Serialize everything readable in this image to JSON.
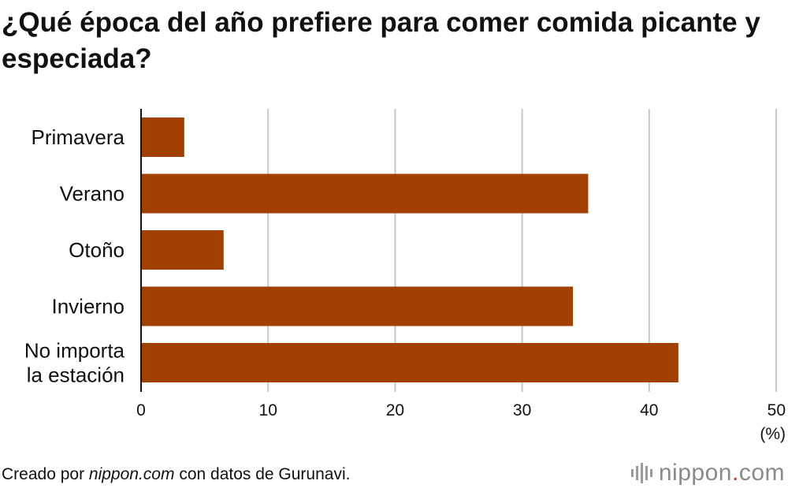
{
  "chart_data": {
    "type": "bar",
    "orientation": "horizontal",
    "title": "¿Qué época del año prefiere para comer comida picante y especiada?",
    "categories": [
      [
        "Primavera"
      ],
      [
        "Verano"
      ],
      [
        "Otoño"
      ],
      [
        "Invierno"
      ],
      [
        "No importa",
        "la estación"
      ]
    ],
    "values": [
      3.4,
      35.2,
      6.5,
      34.0,
      42.3
    ],
    "xlim": [
      0,
      50
    ],
    "xticks": [
      0,
      10,
      20,
      30,
      40,
      50
    ],
    "xunit": "(%)",
    "bar_color": "#a14000",
    "grid": true
  },
  "footer": {
    "prefix": "Creado por ",
    "site": "nippon.com",
    "suffix": " con datos de Gurunavi."
  },
  "logo": {
    "name": "nippon",
    "dot": ".",
    "tld": "com"
  }
}
